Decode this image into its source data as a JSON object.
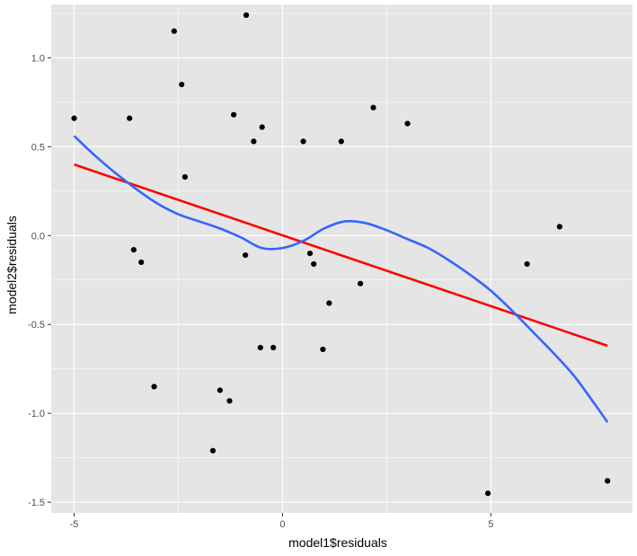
{
  "chart_data": {
    "type": "scatter",
    "title": "",
    "xlabel": "model1$residuals",
    "ylabel": "model2$residuals",
    "xlim": [
      -5.55,
      8.4
    ],
    "ylim": [
      -1.56,
      1.3
    ],
    "x_ticks": [
      -5,
      0,
      5
    ],
    "x_tick_labels": [
      "-5",
      "0",
      "5"
    ],
    "y_ticks": [
      -1.5,
      -1.0,
      -0.5,
      0.0,
      0.5,
      1.0
    ],
    "y_tick_labels": [
      "-1.5",
      "-1.0",
      "-0.5",
      "0.0",
      "0.5",
      "1.0"
    ],
    "grid": true,
    "legend": "none",
    "colors": {
      "panel_background": "#e5e5e5",
      "grid": "#ffffff",
      "points": "#000000",
      "linear_fit": "#ff0000",
      "smooth_fit": "#3366ff"
    },
    "points": [
      {
        "x": -5.0,
        "y": 0.66
      },
      {
        "x": -3.67,
        "y": 0.66
      },
      {
        "x": -3.57,
        "y": -0.08
      },
      {
        "x": -3.39,
        "y": -0.15
      },
      {
        "x": -3.08,
        "y": -0.85
      },
      {
        "x": -2.6,
        "y": 1.15
      },
      {
        "x": -2.42,
        "y": 0.85
      },
      {
        "x": -2.34,
        "y": 0.33
      },
      {
        "x": -1.67,
        "y": -1.21
      },
      {
        "x": -1.5,
        "y": -0.87
      },
      {
        "x": -1.27,
        "y": -0.93
      },
      {
        "x": -1.17,
        "y": 0.68
      },
      {
        "x": -0.89,
        "y": -0.11
      },
      {
        "x": -0.87,
        "y": 1.24
      },
      {
        "x": -0.69,
        "y": 0.53
      },
      {
        "x": -0.53,
        "y": -0.63
      },
      {
        "x": -0.49,
        "y": 0.61
      },
      {
        "x": -0.22,
        "y": -0.63
      },
      {
        "x": 0.5,
        "y": 0.53
      },
      {
        "x": 0.66,
        "y": -0.1
      },
      {
        "x": 0.75,
        "y": -0.16
      },
      {
        "x": 0.97,
        "y": -0.64
      },
      {
        "x": 1.12,
        "y": -0.38
      },
      {
        "x": 1.41,
        "y": 0.53
      },
      {
        "x": 1.87,
        "y": -0.27
      },
      {
        "x": 2.18,
        "y": 0.72
      },
      {
        "x": 3.0,
        "y": 0.63
      },
      {
        "x": 4.93,
        "y": -1.45
      },
      {
        "x": 5.87,
        "y": -0.16
      },
      {
        "x": 6.65,
        "y": 0.05
      },
      {
        "x": 7.8,
        "y": -1.38
      }
    ],
    "linear_fit": {
      "x": [
        -5.0,
        7.8
      ],
      "y": [
        0.4,
        -0.62
      ]
    },
    "smooth_fit": {
      "x": [
        -5.0,
        -4.5,
        -4.0,
        -3.5,
        -3.0,
        -2.5,
        -2.0,
        -1.5,
        -1.0,
        -0.5,
        0.0,
        0.5,
        1.0,
        1.5,
        2.0,
        2.5,
        3.0,
        3.5,
        4.0,
        4.5,
        5.0,
        5.5,
        6.0,
        6.5,
        7.0,
        7.5,
        7.8
      ],
      "y": [
        0.56,
        0.45,
        0.35,
        0.26,
        0.18,
        0.12,
        0.08,
        0.04,
        -0.01,
        -0.07,
        -0.07,
        -0.03,
        0.04,
        0.08,
        0.07,
        0.03,
        -0.02,
        -0.07,
        -0.14,
        -0.22,
        -0.31,
        -0.42,
        -0.54,
        -0.66,
        -0.79,
        -0.95,
        -1.05
      ]
    }
  }
}
